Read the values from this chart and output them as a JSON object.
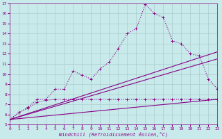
{
  "xlabel": "Windchill (Refroidissement éolien,°C)",
  "bg_color": "#c8eaea",
  "grid_color": "#aacccc",
  "line_color": "#880088",
  "xmin": 0,
  "xmax": 23,
  "ymin": 5,
  "ymax": 17,
  "line_width": 0.8,
  "marker": "+",
  "straight_line1": [
    [
      0,
      23
    ],
    [
      5.5,
      7.5
    ]
  ],
  "straight_line2": [
    [
      0,
      23
    ],
    [
      5.5,
      11.5
    ]
  ],
  "straight_line3": [
    [
      0,
      23
    ],
    [
      5.5,
      12.2
    ]
  ],
  "curved_x": [
    0,
    1,
    2,
    3,
    4,
    5,
    6,
    7,
    8,
    9,
    10,
    11,
    12,
    13,
    14,
    15,
    16,
    17,
    18,
    19,
    20,
    21,
    22,
    23
  ],
  "curved_y": [
    5.5,
    6.2,
    6.7,
    7.5,
    7.5,
    8.5,
    8.5,
    10.3,
    9.9,
    9.5,
    10.5,
    11.2,
    12.5,
    14.0,
    14.5,
    16.9,
    16.0,
    15.6,
    13.3,
    13.0,
    12.0,
    11.8,
    9.5,
    8.5
  ],
  "flat_x": [
    0,
    1,
    2,
    3,
    4,
    5,
    6,
    7,
    8,
    9,
    10,
    11,
    12,
    13,
    14,
    15,
    16,
    17,
    18,
    19,
    20,
    21,
    22,
    23
  ],
  "flat_y": [
    5.5,
    6.2,
    6.6,
    7.2,
    7.4,
    7.5,
    7.5,
    7.5,
    7.5,
    7.5,
    7.5,
    7.5,
    7.5,
    7.5,
    7.5,
    7.5,
    7.5,
    7.5,
    7.5,
    7.5,
    7.5,
    7.5,
    7.5,
    7.5
  ]
}
